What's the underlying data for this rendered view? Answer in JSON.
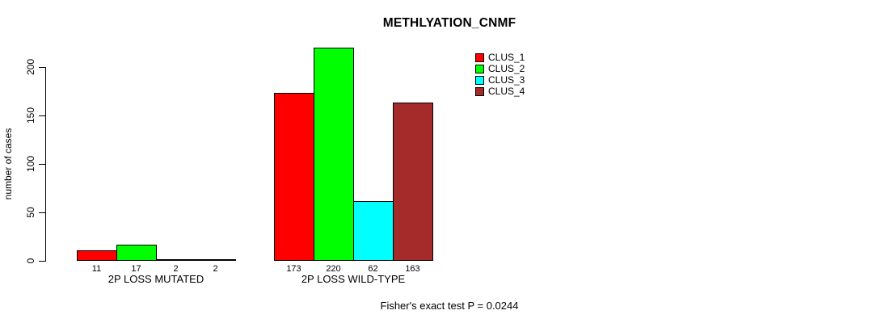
{
  "chart_data": {
    "type": "bar",
    "title": "METHLYATION_CNMF",
    "ylabel": "number of cases",
    "xlabel": "",
    "ylim": [
      0,
      220
    ],
    "yticks": [
      0,
      50,
      100,
      150,
      200
    ],
    "grid": false,
    "legend_position": "top-right",
    "bar_labels": true,
    "categories": [
      "2P LOSS MUTATED",
      "2P LOSS WILD-TYPE"
    ],
    "series": [
      {
        "name": "CLUS_1",
        "color": "#FF0000",
        "values": [
          11,
          173
        ]
      },
      {
        "name": "CLUS_2",
        "color": "#00FF00",
        "values": [
          17,
          220
        ]
      },
      {
        "name": "CLUS_3",
        "color": "#00FFFF",
        "values": [
          2,
          62
        ]
      },
      {
        "name": "CLUS_4",
        "color": "#A52A2A",
        "values": [
          2,
          163
        ]
      }
    ],
    "annotation": "Fisher's exact test P = 0.0244"
  },
  "colors": {
    "background": "#FFFFFF",
    "axis": "#000000",
    "text": "#000000"
  }
}
